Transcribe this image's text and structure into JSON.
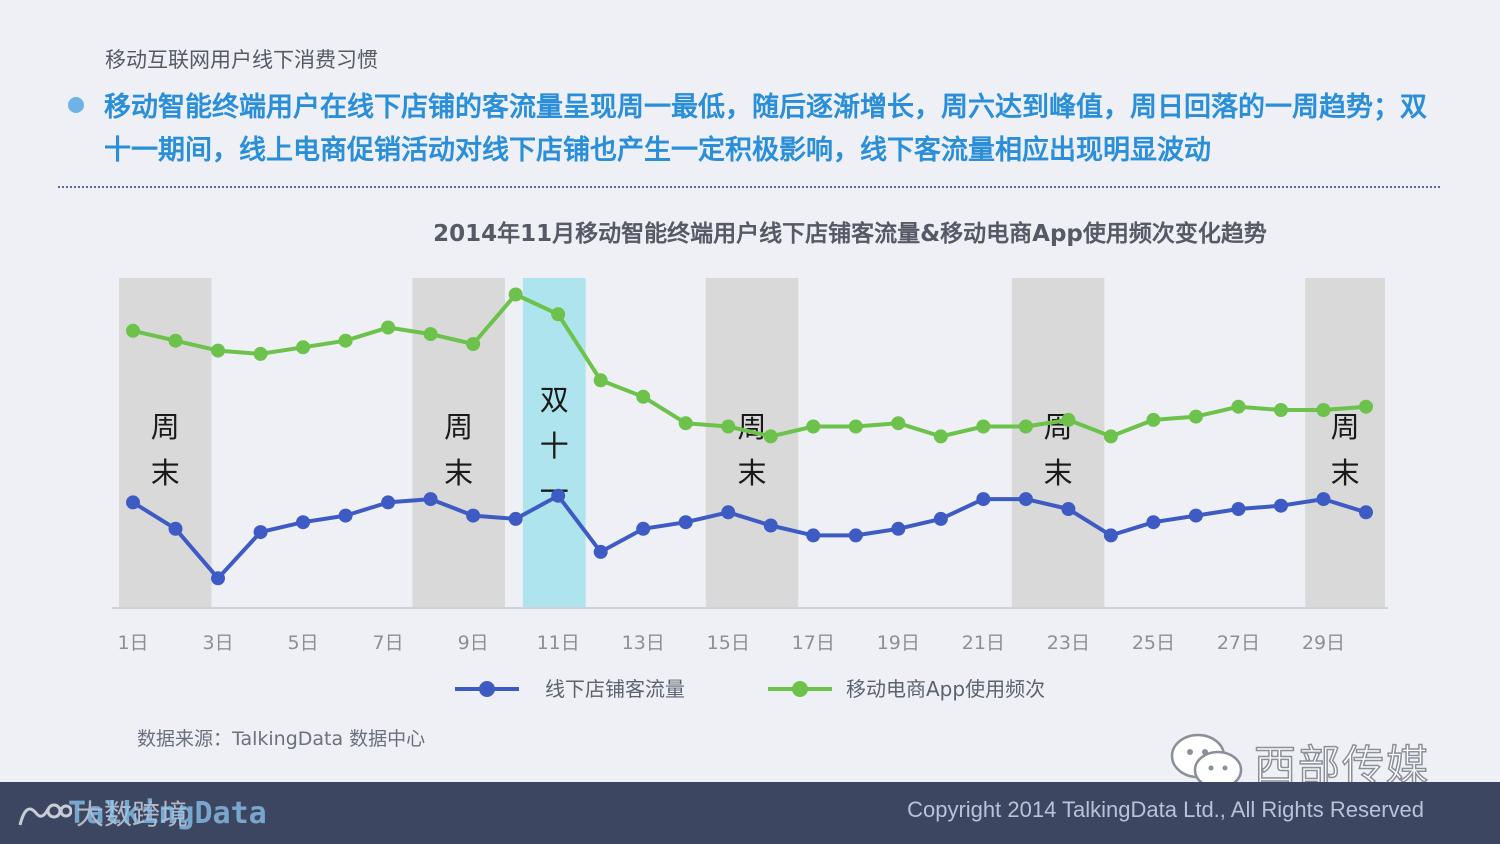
{
  "header": {
    "section_title": "移动互联网用户线下消费习惯",
    "headline": "移动智能终端用户在线下店铺的客流量呈现周一最低，随后逐渐增长，周六达到峰值，周日回落的一周趋势；双十一期间，线上电商促销活动对线下店铺也产生一定积极影响，线下客流量相应出现明显波动",
    "bullet_color": "#6fb3e6"
  },
  "chart_data": {
    "type": "line",
    "title": "2014年11月移动智能终端用户线下店铺客流量&移动电商App使用频次变化趋势",
    "x": [
      1,
      2,
      3,
      4,
      5,
      6,
      7,
      8,
      9,
      10,
      11,
      12,
      13,
      14,
      15,
      16,
      17,
      18,
      19,
      20,
      21,
      22,
      23,
      24,
      25,
      26,
      27,
      28,
      29,
      30
    ],
    "x_tick_labels": [
      "1日",
      "3日",
      "5日",
      "7日",
      "9日",
      "11日",
      "13日",
      "15日",
      "17日",
      "19日",
      "21日",
      "23日",
      "25日",
      "27日",
      "29日"
    ],
    "x_tick_values": [
      1,
      3,
      5,
      7,
      9,
      11,
      13,
      15,
      17,
      19,
      21,
      23,
      25,
      27,
      29
    ],
    "xlabel": "",
    "ylabel": "",
    "ylim": [
      0,
      100
    ],
    "y_axis_visible": false,
    "grid": false,
    "legend_position": "bottom",
    "series": [
      {
        "name": "线下店铺客流量",
        "color": "#3e5bc4",
        "values": [
          32,
          24,
          9,
          23,
          26,
          28,
          32,
          33,
          28,
          27,
          34,
          17,
          24,
          26,
          29,
          25,
          22,
          22,
          24,
          27,
          33,
          33,
          30,
          22,
          26,
          28,
          30,
          31,
          33,
          29
        ]
      },
      {
        "name": "移动电商App使用频次",
        "color": "#6cc24a",
        "values": [
          84,
          81,
          78,
          77,
          79,
          81,
          85,
          83,
          80,
          95,
          89,
          69,
          64,
          56,
          55,
          52,
          55,
          55,
          56,
          52,
          55,
          55,
          57,
          52,
          57,
          58,
          61,
          60,
          60,
          61
        ]
      }
    ],
    "bands": [
      {
        "label": "周末",
        "from": 1,
        "to": 2.8,
        "color": "#d9d9d9"
      },
      {
        "label": "周末",
        "from": 7.9,
        "to": 9.7,
        "color": "#d9d9d9"
      },
      {
        "label": "双十一",
        "from": 10.5,
        "to": 11.6,
        "color": "#aee4ee"
      },
      {
        "label": "周末",
        "from": 14.8,
        "to": 16.6,
        "color": "#d9d9d9"
      },
      {
        "label": "周末",
        "from": 22,
        "to": 23.8,
        "color": "#d9d9d9"
      },
      {
        "label": "周末",
        "from": 28.9,
        "to": 30.4,
        "color": "#d9d9d9"
      }
    ]
  },
  "source": {
    "text": "数据来源：TalkingData 数据中心"
  },
  "watermark": {
    "wechat_icon": "wechat-icon",
    "name": "西部传媒"
  },
  "footer": {
    "logo_cn": "大数跨境",
    "logo_en": "TalkingData",
    "copyright": "Copyright 2014 TalkingData Ltd., All Rights Reserved",
    "background": "#3d4660"
  }
}
